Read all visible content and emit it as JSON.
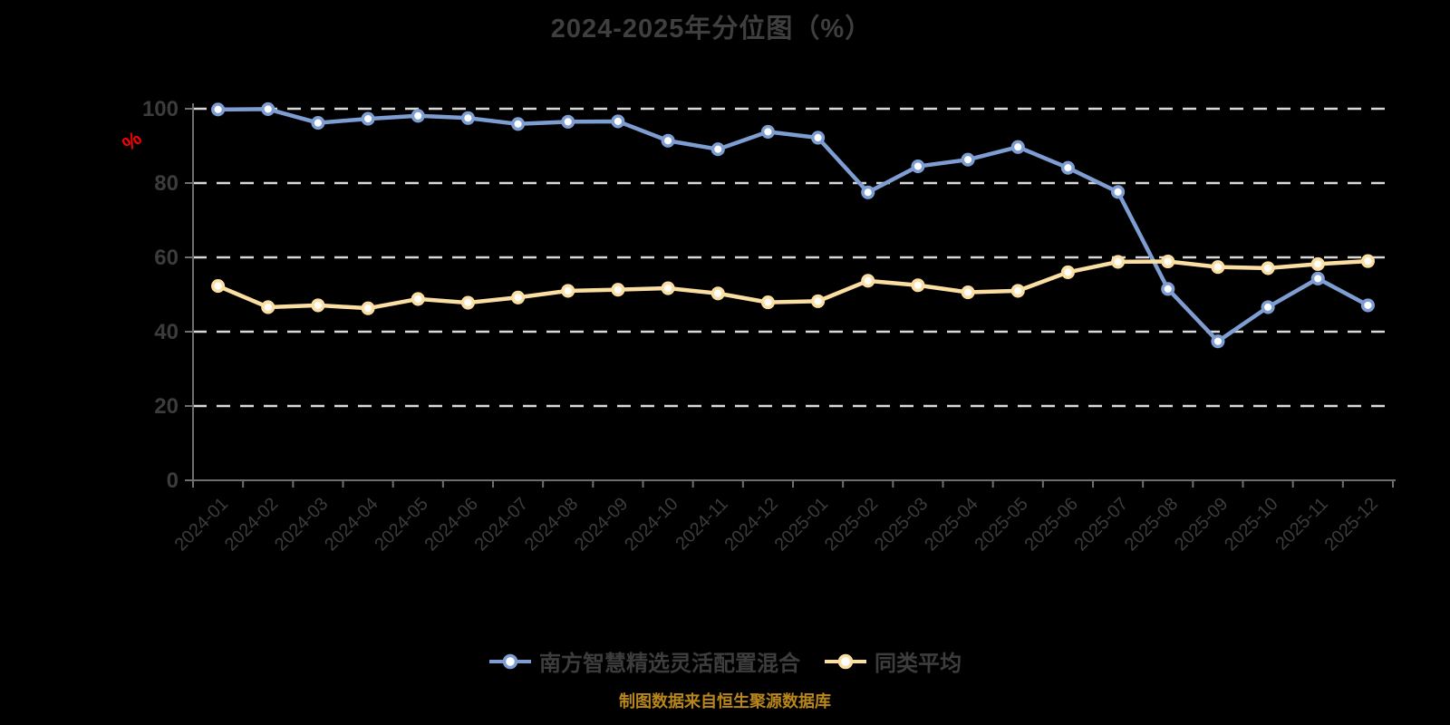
{
  "title": "2024-2025年分位图（%）",
  "source_note": "制图数据来自恒生聚源数据库",
  "colors": {
    "background": "#000000",
    "title_text": "#3f3f3f",
    "axis_line": "#6e6e6e",
    "axis_label": "#3c3c3c",
    "gridline": "#d9d9d9",
    "y_axis_name": "#ff0000",
    "series_fund": "#7e9ed3",
    "series_average": "#fbdfa2",
    "marker_fill": "#ffffff",
    "legend_text": "#3d3d3d",
    "source_text": "#b8861b"
  },
  "y_axis": {
    "name": "%",
    "ticks": [
      0,
      20,
      40,
      60,
      80,
      100
    ]
  },
  "legend": [
    {
      "label": "南方智慧精选灵活配置混合",
      "color": "#7e9ed3"
    },
    {
      "label": "同类平均",
      "color": "#fbdfa2"
    }
  ],
  "chart_data": {
    "type": "line",
    "title": "2024-2025年分位图（%）",
    "xlabel": "",
    "ylabel": "%",
    "ylim": [
      0,
      100
    ],
    "grid": "horizontal-dashed",
    "legend_position": "bottom",
    "categories": [
      "2024-01",
      "2024-02",
      "2024-03",
      "2024-04",
      "2024-05",
      "2024-06",
      "2024-07",
      "2024-08",
      "2024-09",
      "2024-10",
      "2024-11",
      "2024-12",
      "2025-01",
      "2025-02",
      "2025-03",
      "2025-04",
      "2025-05",
      "2025-06",
      "2025-07",
      "2025-08",
      "2025-09",
      "2025-10",
      "2025-11",
      "2025-12"
    ],
    "series": [
      {
        "name": "南方智慧精选灵活配置混合",
        "color": "#7e9ed3",
        "values": [
          99.8,
          99.9,
          96.2,
          97.3,
          98.1,
          97.5,
          95.9,
          96.5,
          96.6,
          91.4,
          89.1,
          93.8,
          92.2,
          77.5,
          84.5,
          86.3,
          89.7,
          84.1,
          77.6,
          51.5,
          37.4,
          46.6,
          54.3,
          47.1
        ]
      },
      {
        "name": "同类平均",
        "color": "#fbdfa2",
        "values": [
          52.3,
          46.6,
          47.1,
          46.3,
          48.8,
          47.8,
          49.2,
          51.0,
          51.3,
          51.7,
          50.3,
          47.9,
          48.2,
          53.7,
          52.5,
          50.6,
          51.0,
          56.0,
          58.8,
          58.9,
          57.4,
          57.1,
          58.2,
          59.0
        ]
      }
    ]
  }
}
